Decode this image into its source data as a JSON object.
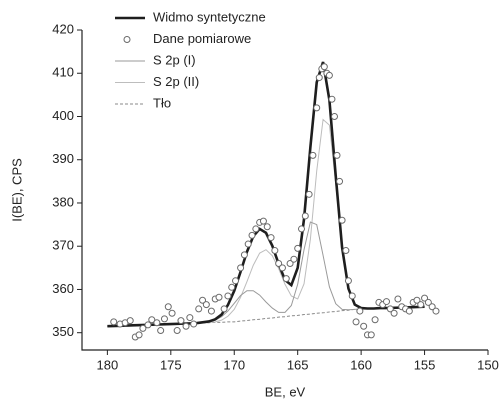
{
  "chart_data": {
    "type": "line",
    "x_label": "BE, eV",
    "y_label": "I(BE), CPS",
    "xlim": [
      182,
      150
    ],
    "ylim": [
      346,
      420
    ],
    "xticks": [
      180,
      175,
      170,
      165,
      160,
      155,
      150
    ],
    "yticks": [
      350,
      360,
      370,
      380,
      390,
      400,
      410,
      420
    ],
    "legend": "upper left",
    "x": [
      180,
      179,
      178,
      177,
      176,
      175,
      174,
      173,
      172,
      171.5,
      171,
      170.5,
      170,
      169.5,
      169,
      168.5,
      168,
      167.5,
      167,
      166.5,
      166,
      165.5,
      165,
      164.5,
      164,
      163.5,
      163,
      162.5,
      162,
      161.5,
      161,
      160.5,
      160,
      159.5,
      159,
      158.5,
      158,
      157,
      156,
      155
    ],
    "series": [
      {
        "name": "Widmo syntetyczne",
        "color": "#1e1e1e",
        "style": "bold",
        "values": [
          351.5,
          351.6,
          351.7,
          351.8,
          351.9,
          352.0,
          352.1,
          352.2,
          352.6,
          353.1,
          354.2,
          356.4,
          359.7,
          364.1,
          368.7,
          372.3,
          374.0,
          373.1,
          370.1,
          365.9,
          362.2,
          361.0,
          365.0,
          376.3,
          392.9,
          407.9,
          412.6,
          403.8,
          386.2,
          369.7,
          360.2,
          356.5,
          355.7,
          355.6,
          355.6,
          355.7,
          355.7,
          355.8,
          355.9,
          356.0
        ]
      },
      {
        "name": "Dane pomiarowe",
        "color": "#6a6a6a",
        "type": "scatter",
        "x": [
          179.5,
          179,
          178.6,
          178.2,
          177.8,
          177.5,
          177.2,
          176.8,
          176.5,
          176.1,
          175.8,
          175.5,
          175.2,
          174.9,
          174.5,
          174.2,
          173.8,
          173.5,
          173.2,
          172.8,
          172.5,
          172.2,
          171.8,
          171.5,
          171.2,
          170.8,
          170.5,
          170.2,
          169.9,
          169.5,
          169.2,
          168.9,
          168.6,
          168.3,
          168,
          167.7,
          167.4,
          167.1,
          166.8,
          166.5,
          166.2,
          165.9,
          165.6,
          165.3,
          165,
          164.7,
          164.4,
          164.1,
          163.8,
          163.5,
          163.3,
          163.1,
          162.9,
          162.7,
          162.5,
          162.3,
          162.1,
          161.9,
          161.7,
          161.5,
          161.2,
          161,
          160.7,
          160.4,
          160.1,
          159.8,
          159.5,
          159.2,
          158.9,
          158.6,
          158.3,
          158,
          157.7,
          157.4,
          157.1,
          156.8,
          156.5,
          156.2,
          155.9,
          155.6,
          155.3,
          155,
          154.7,
          154.4,
          154.1
        ],
        "values": [
          352.5,
          352,
          352.3,
          352.8,
          349,
          349.5,
          351,
          351.8,
          353,
          352.3,
          350.5,
          353.2,
          356,
          354.5,
          350.5,
          352.8,
          351.5,
          353.5,
          352,
          355.5,
          357.5,
          356.5,
          355,
          357.8,
          358.2,
          355.5,
          358.5,
          360.5,
          362,
          365,
          368,
          370.5,
          372.5,
          374,
          375.5,
          375.8,
          374.5,
          372,
          369,
          366,
          365,
          362.5,
          366,
          367,
          369.5,
          374,
          377,
          382,
          391,
          402,
          409,
          411,
          411.5,
          410,
          409.5,
          404,
          400,
          391,
          385,
          376,
          369,
          362,
          358.5,
          352.5,
          355,
          351.5,
          349.5,
          349.5,
          353,
          357,
          356.5,
          357.2,
          355.5,
          354.5,
          357.8,
          356,
          355.5,
          355,
          357,
          357.5,
          356.5,
          358,
          357,
          356,
          355
        ]
      },
      {
        "name": "S 2p (I)",
        "color": "#9a9a9a",
        "values": [
          351.5,
          351.6,
          351.7,
          351.8,
          351.9,
          352.0,
          352.1,
          352.2,
          352.5,
          352.9,
          353.7,
          355.0,
          356.8,
          358.6,
          359.7,
          359.7,
          358.7,
          357.1,
          355.7,
          354.7,
          354.7,
          356.3,
          361.2,
          369.2,
          375.6,
          375.0,
          367.9,
          360.6,
          356.7,
          355.4,
          355.3,
          355.4,
          355.5,
          355.6,
          355.6,
          355.7,
          355.7,
          355.8,
          355.9,
          356.0
        ]
      },
      {
        "name": "S 2p (II)",
        "color": "#bdbdbd",
        "values": [
          351.5,
          351.6,
          351.7,
          351.8,
          351.9,
          352.0,
          352.1,
          352.2,
          352.4,
          352.5,
          352.9,
          353.8,
          355.4,
          358.2,
          361.8,
          365.6,
          368.4,
          369.2,
          367.8,
          364.8,
          361.2,
          358.5,
          357.8,
          361.3,
          371.6,
          387.4,
          399.3,
          398.0,
          384.4,
          369.4,
          360.1,
          356.5,
          355.7,
          355.6,
          355.6,
          355.7,
          355.7,
          355.8,
          355.9,
          356.0
        ]
      },
      {
        "name": "Tło",
        "color": "#8a8a8a",
        "style": "dashed",
        "values": [
          351.5,
          351.6,
          351.7,
          351.8,
          351.9,
          352.0,
          352.1,
          352.2,
          352.3,
          352.4,
          352.4,
          352.5,
          352.5,
          352.7,
          352.8,
          353.0,
          353.1,
          353.3,
          353.4,
          353.6,
          353.7,
          353.9,
          354.0,
          354.2,
          354.3,
          354.5,
          354.6,
          354.8,
          354.9,
          355.1,
          355.2,
          355.4,
          355.5,
          355.6,
          355.6,
          355.7,
          355.7,
          355.8,
          355.9,
          356.0
        ]
      }
    ]
  }
}
